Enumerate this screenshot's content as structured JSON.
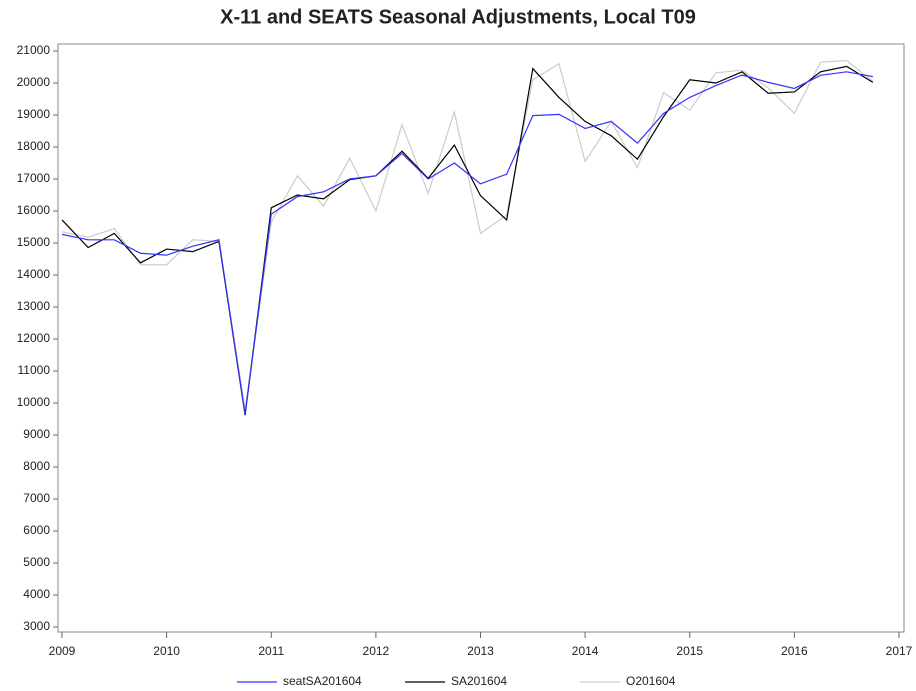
{
  "chart_data": {
    "type": "line",
    "title": "X-11 and SEATS Seasonal Adjustments, Local T09",
    "x": [
      2009,
      2009.25,
      2009.5,
      2009.75,
      2010,
      2010.25,
      2010.5,
      2010.75,
      2011,
      2011.25,
      2011.5,
      2011.75,
      2012,
      2012.25,
      2012.5,
      2012.75,
      2013,
      2013.25,
      2013.5,
      2013.75,
      2014,
      2014.25,
      2014.5,
      2014.75,
      2015,
      2015.25,
      2015.5,
      2015.75,
      2016,
      2016.25,
      2016.5,
      2016.75
    ],
    "series": [
      {
        "name": "seatSA201604",
        "color": "#3333ff",
        "values": [
          15270,
          15100,
          15100,
          14680,
          14620,
          14900,
          15100,
          9650,
          15900,
          16450,
          16600,
          17000,
          17100,
          17800,
          17000,
          17500,
          16850,
          17150,
          18980,
          19020,
          18580,
          18800,
          18120,
          19050,
          19550,
          19920,
          20250,
          20020,
          19830,
          20240,
          20350,
          20200
        ]
      },
      {
        "name": "SA201604",
        "color": "#000000",
        "values": [
          15720,
          14860,
          15300,
          14380,
          14810,
          14730,
          15050,
          9620,
          16100,
          16500,
          16380,
          16980,
          17100,
          17870,
          17020,
          18060,
          16480,
          15720,
          20450,
          19550,
          18800,
          18350,
          17620,
          18950,
          20100,
          20000,
          20350,
          19680,
          19720,
          20350,
          20520,
          20020
        ]
      },
      {
        "name": "O201604",
        "color": "#cccccc",
        "values": [
          15350,
          15180,
          15450,
          14320,
          14320,
          15100,
          15050,
          9800,
          15650,
          17100,
          16150,
          17650,
          16000,
          18700,
          16550,
          19100,
          15300,
          15880,
          20100,
          20600,
          17550,
          18800,
          17350,
          19700,
          19150,
          20320,
          20400,
          19850,
          19050,
          20650,
          20700,
          20050
        ]
      }
    ],
    "xlim": [
      2009,
      2017
    ],
    "xticks": [
      2009,
      2010,
      2011,
      2012,
      2013,
      2014,
      2015,
      2016,
      2017
    ],
    "ylim": [
      3000,
      21000
    ],
    "yticks": [
      3000,
      4000,
      5000,
      6000,
      7000,
      8000,
      9000,
      10000,
      11000,
      12000,
      13000,
      14000,
      15000,
      16000,
      17000,
      18000,
      19000,
      20000,
      21000
    ]
  }
}
